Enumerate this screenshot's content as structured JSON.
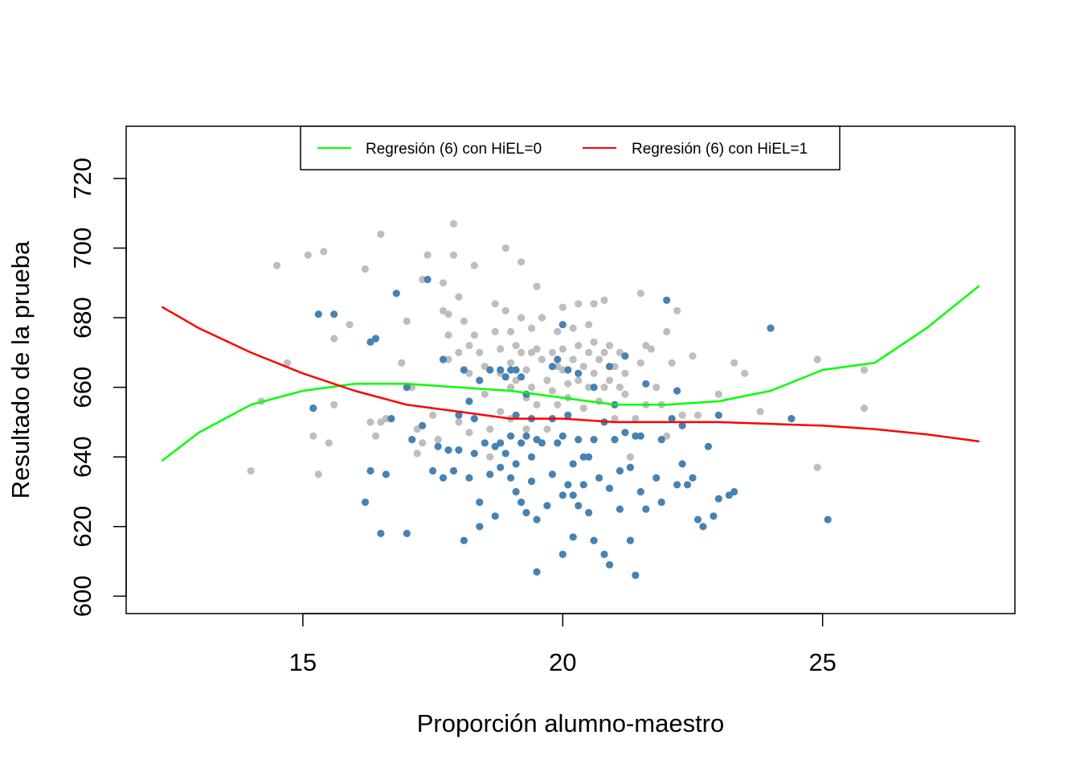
{
  "chart_data": {
    "type": "scatter",
    "xlabel": "Proporción alumno-maestro",
    "ylabel": "Resultado de la prueba",
    "xlim": [
      11.6,
      28.7
    ],
    "ylim": [
      595,
      735
    ],
    "xticks": [
      15,
      20,
      25
    ],
    "yticks": [
      600,
      620,
      640,
      660,
      680,
      700,
      720
    ],
    "grid": false,
    "legend_position": "top-center",
    "colors": {
      "hiel0_points": "#bebebe",
      "hiel1_points": "#4682b4",
      "hiel0_line": "#00ff00",
      "hiel1_line": "#ff0000"
    },
    "lines": [
      {
        "name": "Regresión (6) con HiEL=0",
        "color": "#00ff00",
        "x": [
          12.3,
          13,
          14,
          15,
          16,
          17,
          18,
          19,
          20,
          21,
          22,
          23,
          24,
          25,
          26,
          27,
          28
        ],
        "y": [
          639,
          647,
          655,
          659,
          661,
          661,
          660,
          659,
          657,
          655,
          655,
          656,
          659,
          665,
          667,
          677,
          689
        ]
      },
      {
        "name": "Regresión (6) con HiEL=1",
        "color": "#ff0000",
        "x": [
          12.3,
          13,
          14,
          15,
          16,
          17,
          18,
          19,
          20,
          21,
          22,
          23,
          24,
          25,
          26,
          27,
          28
        ],
        "y": [
          683,
          677,
          670,
          664,
          659,
          655,
          653,
          651,
          651,
          650,
          650,
          650,
          649.5,
          649,
          648,
          646.5,
          644.5
        ]
      }
    ],
    "series": [
      {
        "name": "HiEL=0",
        "color": "#bebebe",
        "points": [
          [
            14.0,
            636
          ],
          [
            14.2,
            656
          ],
          [
            14.5,
            695
          ],
          [
            14.7,
            667
          ],
          [
            15.1,
            698
          ],
          [
            15.2,
            646
          ],
          [
            15.3,
            635
          ],
          [
            15.4,
            699
          ],
          [
            15.5,
            644
          ],
          [
            15.6,
            655
          ],
          [
            15.6,
            674
          ],
          [
            15.9,
            678
          ],
          [
            16.2,
            694
          ],
          [
            16.3,
            650
          ],
          [
            16.4,
            646
          ],
          [
            16.5,
            704
          ],
          [
            16.5,
            650
          ],
          [
            16.6,
            651
          ],
          [
            16.9,
            667
          ],
          [
            17.0,
            679
          ],
          [
            17.1,
            660
          ],
          [
            17.2,
            648
          ],
          [
            17.2,
            641
          ],
          [
            17.3,
            644
          ],
          [
            17.3,
            691
          ],
          [
            17.4,
            698
          ],
          [
            17.5,
            652
          ],
          [
            17.6,
            645
          ],
          [
            17.7,
            690
          ],
          [
            17.7,
            682
          ],
          [
            17.8,
            681
          ],
          [
            17.8,
            675
          ],
          [
            17.8,
            668
          ],
          [
            17.9,
            707
          ],
          [
            17.9,
            698
          ],
          [
            18.0,
            686
          ],
          [
            18.0,
            670
          ],
          [
            18.0,
            650
          ],
          [
            18.1,
            679
          ],
          [
            18.2,
            672
          ],
          [
            18.2,
            664
          ],
          [
            18.2,
            647
          ],
          [
            18.3,
            695
          ],
          [
            18.3,
            675
          ],
          [
            18.4,
            670
          ],
          [
            18.5,
            666
          ],
          [
            18.5,
            658
          ],
          [
            18.6,
            648
          ],
          [
            18.6,
            640
          ],
          [
            18.7,
            684
          ],
          [
            18.7,
            676
          ],
          [
            18.8,
            671
          ],
          [
            18.8,
            664
          ],
          [
            18.8,
            653
          ],
          [
            18.9,
            700
          ],
          [
            18.9,
            682
          ],
          [
            19.0,
            676
          ],
          [
            19.0,
            667
          ],
          [
            19.0,
            660
          ],
          [
            19.0,
            651
          ],
          [
            19.1,
            672
          ],
          [
            19.1,
            662
          ],
          [
            19.2,
            696
          ],
          [
            19.2,
            680
          ],
          [
            19.2,
            670
          ],
          [
            19.3,
            665
          ],
          [
            19.3,
            657
          ],
          [
            19.3,
            648
          ],
          [
            19.4,
            677
          ],
          [
            19.4,
            670
          ],
          [
            19.4,
            660
          ],
          [
            19.5,
            689
          ],
          [
            19.5,
            671
          ],
          [
            19.5,
            655
          ],
          [
            19.6,
            680
          ],
          [
            19.6,
            668
          ],
          [
            19.7,
            662
          ],
          [
            19.7,
            648
          ],
          [
            19.8,
            670
          ],
          [
            19.8,
            659
          ],
          [
            19.9,
            676
          ],
          [
            19.9,
            666
          ],
          [
            19.9,
            655
          ],
          [
            20.0,
            683
          ],
          [
            20.0,
            671
          ],
          [
            20.0,
            665
          ],
          [
            20.1,
            661
          ],
          [
            20.1,
            657
          ],
          [
            20.2,
            677
          ],
          [
            20.2,
            668
          ],
          [
            20.3,
            684
          ],
          [
            20.3,
            672
          ],
          [
            20.3,
            662
          ],
          [
            20.4,
            666
          ],
          [
            20.4,
            654
          ],
          [
            20.5,
            678
          ],
          [
            20.5,
            670
          ],
          [
            20.5,
            660
          ],
          [
            20.6,
            684
          ],
          [
            20.6,
            673
          ],
          [
            20.6,
            664
          ],
          [
            20.7,
            668
          ],
          [
            20.7,
            656
          ],
          [
            20.8,
            685
          ],
          [
            20.8,
            670
          ],
          [
            20.8,
            660
          ],
          [
            20.9,
            672
          ],
          [
            20.9,
            662
          ],
          [
            21.0,
            651
          ],
          [
            21.0,
            666
          ],
          [
            21.1,
            670
          ],
          [
            21.1,
            660
          ],
          [
            21.2,
            664
          ],
          [
            21.2,
            658
          ],
          [
            21.3,
            640
          ],
          [
            21.4,
            651
          ],
          [
            21.5,
            687
          ],
          [
            21.5,
            667
          ],
          [
            21.6,
            672
          ],
          [
            21.6,
            655
          ],
          [
            21.7,
            671
          ],
          [
            21.8,
            660
          ],
          [
            21.9,
            655
          ],
          [
            22.0,
            646
          ],
          [
            22.0,
            676
          ],
          [
            22.1,
            667
          ],
          [
            22.2,
            682
          ],
          [
            22.3,
            652
          ],
          [
            22.5,
            669
          ],
          [
            22.6,
            652
          ],
          [
            23.0,
            658
          ],
          [
            23.3,
            667
          ],
          [
            23.5,
            664
          ],
          [
            23.8,
            653
          ],
          [
            24.9,
            668
          ],
          [
            24.9,
            637
          ],
          [
            25.8,
            665
          ],
          [
            25.8,
            654
          ]
        ]
      },
      {
        "name": "HiEL=1",
        "color": "#4682b4",
        "points": [
          [
            15.2,
            654
          ],
          [
            15.3,
            681
          ],
          [
            15.6,
            681
          ],
          [
            16.2,
            627
          ],
          [
            16.3,
            673
          ],
          [
            16.3,
            636
          ],
          [
            16.4,
            674
          ],
          [
            16.5,
            618
          ],
          [
            16.6,
            635
          ],
          [
            16.7,
            651
          ],
          [
            16.8,
            687
          ],
          [
            17.0,
            618
          ],
          [
            17.0,
            660
          ],
          [
            17.1,
            645
          ],
          [
            17.3,
            649
          ],
          [
            17.4,
            691
          ],
          [
            17.5,
            636
          ],
          [
            17.6,
            643
          ],
          [
            17.7,
            634
          ],
          [
            17.7,
            668
          ],
          [
            17.8,
            642
          ],
          [
            17.9,
            636
          ],
          [
            18.0,
            652
          ],
          [
            18.1,
            616
          ],
          [
            18.1,
            665
          ],
          [
            18.2,
            634
          ],
          [
            18.2,
            656
          ],
          [
            18.3,
            651
          ],
          [
            18.3,
            641
          ],
          [
            18.4,
            627
          ],
          [
            18.4,
            662
          ],
          [
            18.4,
            620
          ],
          [
            18.5,
            644
          ],
          [
            18.6,
            635
          ],
          [
            18.6,
            665
          ],
          [
            18.7,
            643
          ],
          [
            18.7,
            623
          ],
          [
            18.8,
            637
          ],
          [
            18.8,
            665
          ],
          [
            18.8,
            644
          ],
          [
            18.9,
            641
          ],
          [
            18.9,
            663
          ],
          [
            19.0,
            634
          ],
          [
            19.0,
            646
          ],
          [
            19.0,
            665
          ],
          [
            19.1,
            630
          ],
          [
            19.1,
            652
          ],
          [
            19.1,
            638
          ],
          [
            19.1,
            665
          ],
          [
            19.2,
            627
          ],
          [
            19.2,
            644
          ],
          [
            19.2,
            663
          ],
          [
            19.3,
            624
          ],
          [
            19.3,
            646
          ],
          [
            19.3,
            658
          ],
          [
            19.4,
            633
          ],
          [
            19.4,
            640
          ],
          [
            19.5,
            622
          ],
          [
            19.5,
            645
          ],
          [
            19.5,
            607
          ],
          [
            19.6,
            644
          ],
          [
            19.7,
            626
          ],
          [
            19.8,
            635
          ],
          [
            19.8,
            651
          ],
          [
            19.8,
            666
          ],
          [
            19.9,
            644
          ],
          [
            19.9,
            668
          ],
          [
            20.0,
            612
          ],
          [
            20.0,
            629
          ],
          [
            20.0,
            646
          ],
          [
            20.0,
            678
          ],
          [
            20.1,
            632
          ],
          [
            20.1,
            652
          ],
          [
            20.1,
            665
          ],
          [
            20.2,
            638
          ],
          [
            20.2,
            617
          ],
          [
            20.3,
            626
          ],
          [
            20.3,
            645
          ],
          [
            20.3,
            664
          ],
          [
            20.4,
            632
          ],
          [
            20.4,
            640
          ],
          [
            20.5,
            624
          ],
          [
            20.5,
            640
          ],
          [
            20.6,
            616
          ],
          [
            20.6,
            645
          ],
          [
            20.6,
            660
          ],
          [
            20.7,
            634
          ],
          [
            20.8,
            612
          ],
          [
            20.8,
            650
          ],
          [
            20.9,
            609
          ],
          [
            20.9,
            631
          ],
          [
            20.9,
            666
          ],
          [
            21.0,
            645
          ],
          [
            21.1,
            625
          ],
          [
            21.1,
            636
          ],
          [
            21.2,
            647
          ],
          [
            21.2,
            669
          ],
          [
            21.3,
            616
          ],
          [
            21.3,
            637
          ],
          [
            21.4,
            606
          ],
          [
            21.4,
            646
          ],
          [
            21.5,
            630
          ],
          [
            21.5,
            646
          ],
          [
            21.6,
            625
          ],
          [
            21.6,
            661
          ],
          [
            21.8,
            634
          ],
          [
            21.9,
            627
          ],
          [
            21.9,
            645
          ],
          [
            22.0,
            685
          ],
          [
            22.1,
            651
          ],
          [
            22.2,
            632
          ],
          [
            22.2,
            659
          ],
          [
            22.3,
            638
          ],
          [
            22.3,
            649
          ],
          [
            22.4,
            632
          ],
          [
            22.5,
            634
          ],
          [
            22.6,
            622
          ],
          [
            22.7,
            620
          ],
          [
            22.8,
            643
          ],
          [
            22.9,
            623
          ],
          [
            23.0,
            628
          ],
          [
            23.2,
            629
          ],
          [
            23.3,
            630
          ],
          [
            24.0,
            677
          ],
          [
            24.4,
            651
          ],
          [
            25.1,
            622
          ],
          [
            23.0,
            652
          ],
          [
            21.0,
            655
          ],
          [
            19.4,
            651
          ],
          [
            20.2,
            629
          ],
          [
            18.0,
            642
          ]
        ]
      }
    ]
  },
  "legend": {
    "items": [
      {
        "label": "Regresión (6) con HiEL=0",
        "color": "#00ff00"
      },
      {
        "label": "Regresión (6) con HiEL=1",
        "color": "#ff0000"
      }
    ]
  }
}
